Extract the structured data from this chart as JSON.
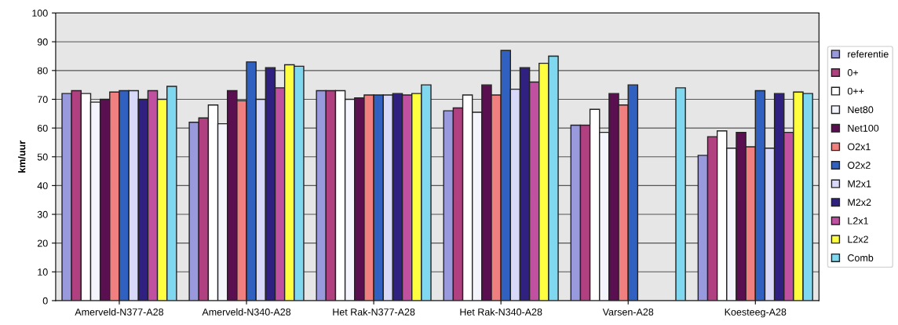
{
  "chart_data": {
    "type": "bar",
    "ylabel": "km/uur",
    "categories": [
      "Amerveld-N377-A28",
      "Amerveld-N340-A28",
      "Het Rak-N377-A28",
      "Het Rak-N340-A28",
      "Varsen-A28",
      "Koesteeg-A28"
    ],
    "series": [
      {
        "name": "referentie",
        "color": "#9999dd",
        "values": [
          72,
          62,
          73,
          66,
          61,
          50.5
        ]
      },
      {
        "name": "0+",
        "color": "#b04080",
        "values": [
          73,
          63.5,
          73,
          67,
          61,
          57
        ]
      },
      {
        "name": "0++",
        "color": "#ffffff",
        "values": [
          72,
          68,
          73,
          71.5,
          66.5,
          59
        ]
      },
      {
        "name": "Net80",
        "color": "#f4f4fc",
        "values": [
          69,
          61.5,
          70,
          65.5,
          58.5,
          53
        ]
      },
      {
        "name": "Net100",
        "color": "#5a1050",
        "values": [
          70,
          73,
          70.5,
          75,
          72,
          58.5
        ]
      },
      {
        "name": "O2x1",
        "color": "#f08080",
        "values": [
          72.5,
          69.5,
          71.5,
          71.5,
          68,
          53.5
        ]
      },
      {
        "name": "O2x2",
        "color": "#3060c0",
        "values": [
          73,
          83,
          71.5,
          87,
          75,
          73
        ]
      },
      {
        "name": "M2x1",
        "color": "#d8d8f8",
        "values": [
          73,
          70,
          71.5,
          73.5,
          null,
          53
        ]
      },
      {
        "name": "M2x2",
        "color": "#302080",
        "values": [
          70,
          81,
          72,
          81,
          null,
          72
        ]
      },
      {
        "name": "L2x1",
        "color": "#c050a0",
        "values": [
          73,
          74,
          71.5,
          76,
          null,
          58.5
        ]
      },
      {
        "name": "L2x2",
        "color": "#ffff40",
        "values": [
          70,
          82,
          72,
          82.5,
          null,
          72.5
        ]
      },
      {
        "name": "Comb",
        "color": "#80d8f0",
        "values": [
          74.5,
          81.5,
          75,
          85,
          74,
          72
        ]
      }
    ],
    "ylim": [
      0,
      100
    ],
    "yticks": [
      0,
      10,
      20,
      30,
      40,
      50,
      60,
      70,
      80,
      90,
      100
    ],
    "grid": "y",
    "legend": "right"
  }
}
